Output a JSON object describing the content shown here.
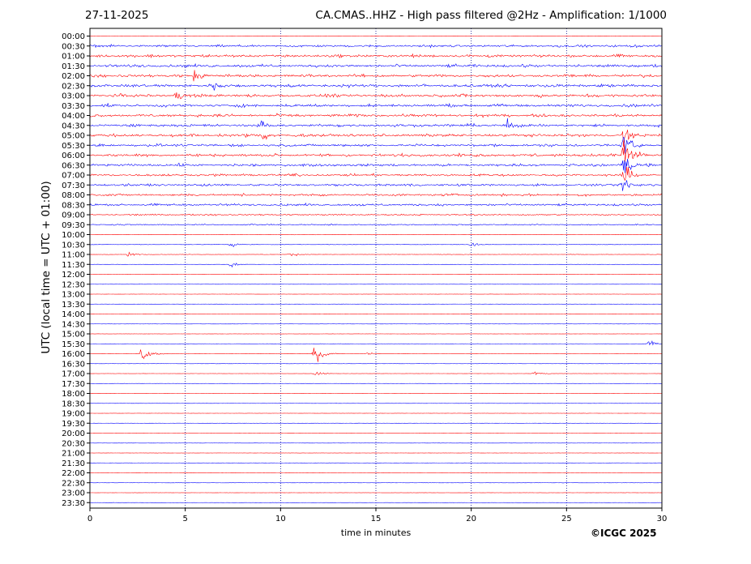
{
  "header": {
    "date": "27-11-2025",
    "title": "CA.CMAS..HHZ - High pass filtered @2Hz - Amplification: 1/1000"
  },
  "footer": {
    "copyright": "©ICGC 2025"
  },
  "colors": {
    "series_a": "#ff0000",
    "series_b": "#0000ff",
    "grid": "#00008b",
    "axis": "#000000"
  },
  "chart_data": {
    "type": "line",
    "title": "CA.CMAS..HHZ - High pass filtered @2Hz - Amplification: 1/1000",
    "xlabel": "time in minutes",
    "ylabel": "UTC (local time = UTC + 01:00)",
    "xlim": [
      0,
      30
    ],
    "x_ticks": [
      0,
      5,
      10,
      15,
      20,
      25,
      30
    ],
    "grid": "vertical dotted lines at 5-minute intervals",
    "rows": [
      "00:00",
      "00:30",
      "01:00",
      "01:30",
      "02:00",
      "02:30",
      "03:00",
      "03:30",
      "04:00",
      "04:30",
      "05:00",
      "05:30",
      "06:00",
      "06:30",
      "07:00",
      "07:30",
      "08:00",
      "08:30",
      "09:00",
      "09:30",
      "10:00",
      "10:30",
      "11:00",
      "11:30",
      "12:00",
      "12:30",
      "13:00",
      "13:30",
      "14:00",
      "14:30",
      "15:00",
      "15:30",
      "16:00",
      "16:30",
      "17:00",
      "17:30",
      "18:00",
      "18:30",
      "19:00",
      "19:30",
      "20:00",
      "20:30",
      "21:00",
      "21:30",
      "22:00",
      "22:30",
      "23:00",
      "23:30"
    ],
    "trace_colors": "alternating red (even rows) and blue (odd rows)",
    "noise_level": [
      0.05,
      0.45,
      0.55,
      0.55,
      0.55,
      0.6,
      0.6,
      0.55,
      0.55,
      0.55,
      0.55,
      0.5,
      0.55,
      0.5,
      0.45,
      0.45,
      0.45,
      0.45,
      0.3,
      0.25,
      0.08,
      0.08,
      0.08,
      0.05,
      0.04,
      0.04,
      0.04,
      0.04,
      0.04,
      0.04,
      0.04,
      0.04,
      0.04,
      0.04,
      0.04,
      0.04,
      0.04,
      0.04,
      0.04,
      0.04,
      0.04,
      0.04,
      0.04,
      0.04,
      0.04,
      0.04,
      0.04,
      0.04
    ],
    "events": [
      {
        "row": "02:00",
        "minute": 5.5,
        "amplitude": 1.2
      },
      {
        "row": "02:30",
        "minute": 6.5,
        "amplitude": 0.9
      },
      {
        "row": "03:00",
        "minute": 4.5,
        "amplitude": 0.8
      },
      {
        "row": "04:30",
        "minute": 9.0,
        "amplitude": 0.9
      },
      {
        "row": "04:30",
        "minute": 21.9,
        "amplitude": 1.0
      },
      {
        "row": "05:00",
        "minute": 9.1,
        "amplitude": 1.0
      },
      {
        "row": "05:00",
        "minute": 28.0,
        "amplitude": 1.5
      },
      {
        "row": "05:30",
        "minute": 28.0,
        "amplitude": 2.5
      },
      {
        "row": "06:00",
        "minute": 28.0,
        "amplitude": 4.0
      },
      {
        "row": "06:30",
        "minute": 28.0,
        "amplitude": 2.5
      },
      {
        "row": "07:00",
        "minute": 28.0,
        "amplitude": 2.5
      },
      {
        "row": "07:30",
        "minute": 28.0,
        "amplitude": 1.5
      },
      {
        "row": "10:30",
        "minute": 7.4,
        "amplitude": 0.6
      },
      {
        "row": "10:30",
        "minute": 20.0,
        "amplitude": 0.6
      },
      {
        "row": "11:00",
        "minute": 2.0,
        "amplitude": 0.5
      },
      {
        "row": "11:00",
        "minute": 10.5,
        "amplitude": 0.4
      },
      {
        "row": "11:30",
        "minute": 7.4,
        "amplitude": 0.4
      },
      {
        "row": "15:30",
        "minute": 29.3,
        "amplitude": 0.6
      },
      {
        "row": "16:00",
        "minute": 2.7,
        "amplitude": 1.8
      },
      {
        "row": "16:00",
        "minute": 11.8,
        "amplitude": 2.0
      },
      {
        "row": "16:00",
        "minute": 14.5,
        "amplitude": 0.4
      },
      {
        "row": "17:00",
        "minute": 11.8,
        "amplitude": 0.4
      },
      {
        "row": "17:00",
        "minute": 23.3,
        "amplitude": 0.4
      }
    ]
  }
}
